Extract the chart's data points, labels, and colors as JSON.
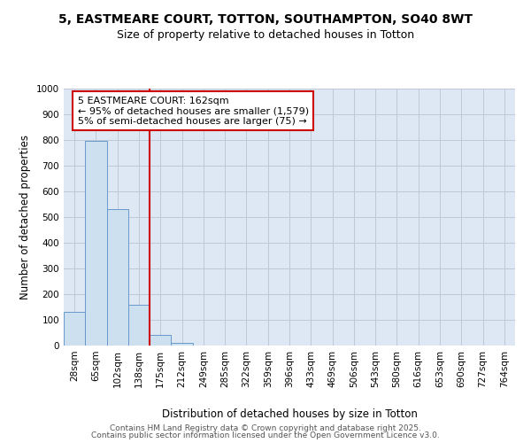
{
  "title": "5, EASTMEARE COURT, TOTTON, SOUTHAMPTON, SO40 8WT",
  "subtitle": "Size of property relative to detached houses in Totton",
  "xlabel": "Distribution of detached houses by size in Totton",
  "ylabel": "Number of detached properties",
  "categories": [
    "28sqm",
    "65sqm",
    "102sqm",
    "138sqm",
    "175sqm",
    "212sqm",
    "249sqm",
    "285sqm",
    "322sqm",
    "359sqm",
    "396sqm",
    "433sqm",
    "469sqm",
    "506sqm",
    "543sqm",
    "580sqm",
    "616sqm",
    "653sqm",
    "690sqm",
    "727sqm",
    "764sqm"
  ],
  "values": [
    130,
    795,
    530,
    160,
    40,
    10,
    0,
    0,
    0,
    0,
    0,
    0,
    0,
    0,
    0,
    0,
    0,
    0,
    0,
    0,
    0
  ],
  "bar_color": "#cce0f0",
  "bar_edge_color": "#6699cc",
  "vline_color": "#cc0000",
  "vline_index": 4,
  "annotation_line1": "5 EASTMEARE COURT: 162sqm",
  "annotation_line2": "← 95% of detached houses are smaller (1,579)",
  "annotation_line3": "5% of semi-detached houses are larger (75) →",
  "annotation_box_color": "#cc0000",
  "ylim": [
    0,
    1000
  ],
  "yticks": [
    0,
    100,
    200,
    300,
    400,
    500,
    600,
    700,
    800,
    900,
    1000
  ],
  "grid_color": "#c0c8d8",
  "bg_color": "#dde8f4",
  "footer1": "Contains HM Land Registry data © Crown copyright and database right 2025.",
  "footer2": "Contains public sector information licensed under the Open Government Licence v3.0.",
  "title_fontsize": 10,
  "subtitle_fontsize": 9,
  "axis_label_fontsize": 8.5,
  "tick_fontsize": 7.5,
  "annotation_fontsize": 8,
  "footer_fontsize": 6.5
}
